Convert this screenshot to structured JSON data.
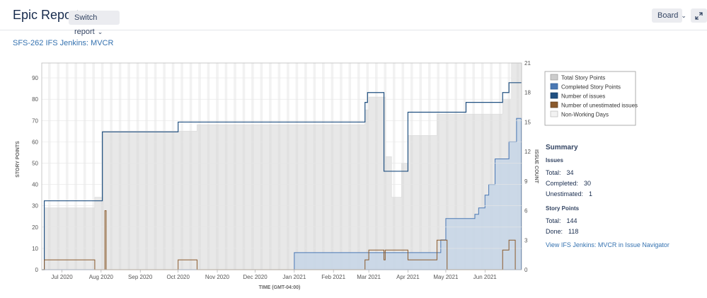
{
  "header": {
    "title": "Epic Report",
    "switch_label": "Switch report",
    "board_label": "Board"
  },
  "epic_link": "SFS-262 IFS Jenkins: MVCR",
  "colors": {
    "total_story_points": "#cccccc",
    "completed_story_points": "#4a78b4",
    "number_of_issues": "#205081",
    "unestimated_issues": "#8a5a2c",
    "non_working_days": "#f2f2f2"
  },
  "chart_data": {
    "type": "area",
    "title": "",
    "xlabel": "TIME (GMT-04:00)",
    "ylabel": "STORY POINTS",
    "y2label": "ISSUE COUNT",
    "ylim": [
      0,
      97
    ],
    "y2lim": [
      0,
      21
    ],
    "yticks": [
      0,
      10,
      20,
      30,
      40,
      50,
      60,
      70,
      80,
      90
    ],
    "y2ticks": [
      0,
      3,
      6,
      9,
      12,
      15,
      18,
      21
    ],
    "xlim": [
      "2020-06-15",
      "2021-06-30"
    ],
    "xticks": [
      {
        "date": "2020-07-01",
        "label": "Jul 2020"
      },
      {
        "date": "2020-08-01",
        "label": "Aug 2020"
      },
      {
        "date": "2020-09-01",
        "label": "Sep 2020"
      },
      {
        "date": "2020-10-01",
        "label": "Oct 2020"
      },
      {
        "date": "2020-11-01",
        "label": "Nov 2020"
      },
      {
        "date": "2020-12-01",
        "label": "Dec 2020"
      },
      {
        "date": "2021-01-01",
        "label": "Jan 2021"
      },
      {
        "date": "2021-02-01",
        "label": "Feb 2021"
      },
      {
        "date": "2021-03-01",
        "label": "Mar 2021"
      },
      {
        "date": "2021-04-01",
        "label": "Apr 2021"
      },
      {
        "date": "2021-05-01",
        "label": "May 2021"
      },
      {
        "date": "2021-06-01",
        "label": "Jun 2021"
      }
    ],
    "legend": [
      "Total Story Points",
      "Completed Story Points",
      "Number of issues",
      "Number of unestimated issues",
      "Non-Working Days"
    ],
    "legend_position": "right",
    "series": [
      {
        "name": "Total Story Points",
        "axis": "left",
        "points": [
          [
            "2020-06-17",
            29
          ],
          [
            "2020-07-27",
            34
          ],
          [
            "2020-08-02",
            65
          ],
          [
            "2020-10-01",
            65
          ],
          [
            "2020-10-16",
            68
          ],
          [
            "2021-02-26",
            75
          ],
          [
            "2021-03-01",
            81
          ],
          [
            "2021-03-14",
            53
          ],
          [
            "2021-03-19",
            34
          ],
          [
            "2021-03-27",
            50
          ],
          [
            "2021-04-01",
            63
          ],
          [
            "2021-04-24",
            73
          ],
          [
            "2021-06-15",
            80
          ],
          [
            "2021-06-22",
            97
          ],
          [
            "2021-06-30",
            97
          ]
        ]
      },
      {
        "name": "Completed Story Points",
        "axis": "left",
        "points": [
          [
            "2020-06-15",
            0
          ],
          [
            "2021-01-01",
            8
          ],
          [
            "2021-04-27",
            14
          ],
          [
            "2021-05-01",
            24
          ],
          [
            "2021-05-24",
            26
          ],
          [
            "2021-05-27",
            29
          ],
          [
            "2021-06-01",
            35
          ],
          [
            "2021-06-04",
            40
          ],
          [
            "2021-06-09",
            52
          ],
          [
            "2021-06-20",
            60
          ],
          [
            "2021-06-26",
            71
          ]
        ]
      },
      {
        "name": "Number of issues",
        "axis": "right",
        "points": [
          [
            "2020-06-15",
            0
          ],
          [
            "2020-06-17",
            7
          ],
          [
            "2020-08-02",
            14
          ],
          [
            "2020-10-01",
            15
          ],
          [
            "2021-02-26",
            17
          ],
          [
            "2021-02-28",
            18
          ],
          [
            "2021-03-13",
            10
          ],
          [
            "2021-04-01",
            16
          ],
          [
            "2021-05-17",
            17
          ],
          [
            "2021-06-15",
            18
          ],
          [
            "2021-06-20",
            19
          ],
          [
            "2021-06-30",
            19
          ]
        ]
      },
      {
        "name": "Number of unestimated issues",
        "axis": "right",
        "points": [
          [
            "2020-06-15",
            0
          ],
          [
            "2020-06-17",
            1
          ],
          [
            "2020-07-27",
            0
          ],
          [
            "2020-08-04",
            6
          ],
          [
            "2020-08-05",
            0
          ],
          [
            "2020-10-01",
            1
          ],
          [
            "2020-10-16",
            0
          ],
          [
            "2021-02-26",
            1
          ],
          [
            "2021-03-01",
            2
          ],
          [
            "2021-03-13",
            1
          ],
          [
            "2021-03-14",
            2
          ],
          [
            "2021-04-01",
            1
          ],
          [
            "2021-04-24",
            3
          ],
          [
            "2021-05-02",
            0
          ],
          [
            "2021-06-15",
            2
          ],
          [
            "2021-06-20",
            3
          ],
          [
            "2021-06-25",
            0
          ]
        ]
      }
    ]
  },
  "summary": {
    "heading": "Summary",
    "issues_heading": "Issues",
    "issues_total_label": "Total:",
    "issues_total": "34",
    "issues_completed_label": "Completed:",
    "issues_completed": "30",
    "issues_unestimated_label": "Unestimated:",
    "issues_unestimated": "1",
    "points_heading": "Story Points",
    "points_total_label": "Total:",
    "points_total": "144",
    "points_done_label": "Done:",
    "points_done": "118",
    "navigator_link": "View IFS Jenkins: MVCR in Issue Navigator"
  }
}
